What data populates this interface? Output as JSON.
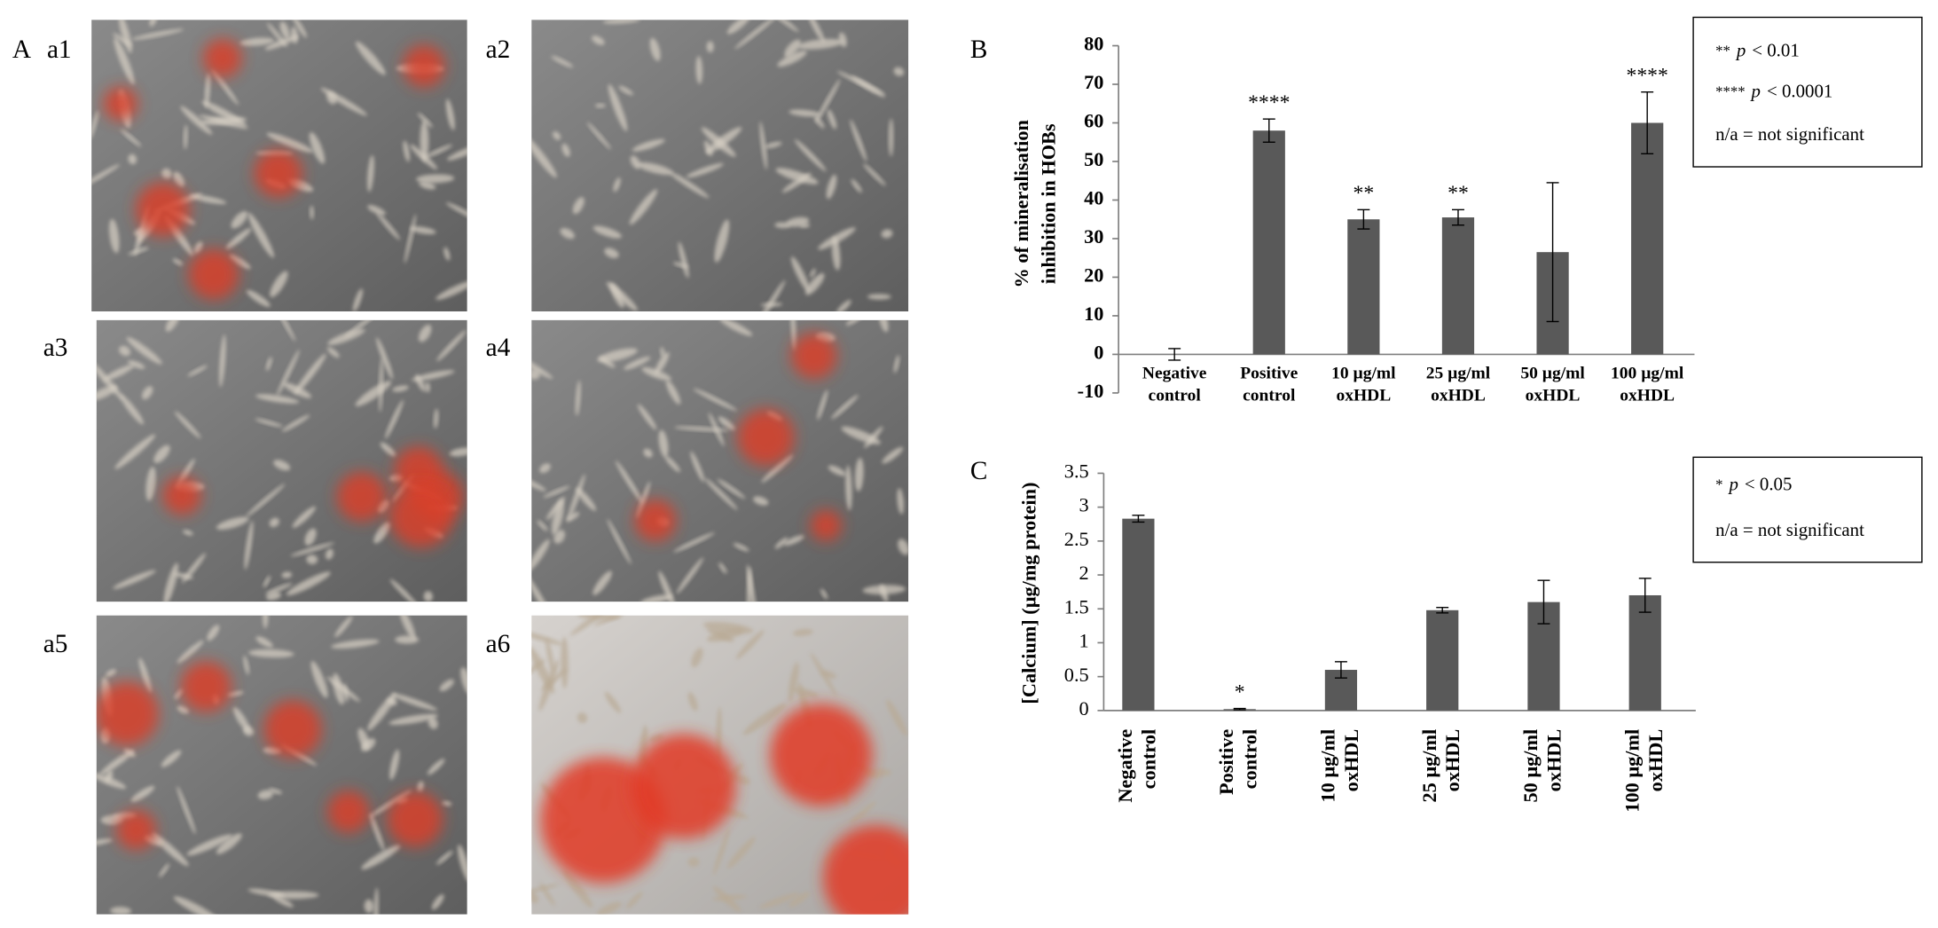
{
  "panels": {
    "main_label": "A",
    "images": [
      "a1",
      "a2",
      "a3",
      "a4",
      "a5",
      "a6"
    ]
  },
  "chart_data": [
    {
      "type": "bar",
      "panel_label": "B",
      "y_label": [
        "% of mineralisation",
        "inhibition in HOBs"
      ],
      "categories": [
        [
          "Negative",
          "control"
        ],
        [
          "Positive",
          "control"
        ],
        [
          "10 µg/ml",
          "oxHDL"
        ],
        [
          "25 µg/ml",
          "oxHDL"
        ],
        [
          "50 µg/ml",
          "oxHDL"
        ],
        [
          "100 µg/ml",
          "oxHDL"
        ]
      ],
      "values": [
        0,
        58,
        35,
        35.5,
        26.5,
        60
      ],
      "errors": [
        1.5,
        3,
        2.5,
        2,
        18,
        8
      ],
      "annotations": [
        null,
        "****",
        "**",
        "**",
        null,
        "****"
      ],
      "color": "#595959",
      "ylim": [
        -10,
        80
      ],
      "yticks": [
        -10,
        0,
        10,
        20,
        30,
        40,
        50,
        60,
        70,
        80
      ],
      "label_rotation": 0,
      "notes": [
        [
          "**",
          "p",
          "< 0.01"
        ],
        [
          "****",
          "p",
          "< 0.0001"
        ],
        [
          "n/a = not significant"
        ]
      ]
    },
    {
      "type": "bar",
      "panel_label": "C",
      "y_label": [
        "[Calcium] (µg/mg protein)"
      ],
      "categories": [
        [
          "Negative",
          "control"
        ],
        [
          "Positive",
          "control"
        ],
        [
          "10 µg/ml",
          "oxHDL"
        ],
        [
          "25 µg/ml",
          "oxHDL"
        ],
        [
          "50 µg/ml",
          "oxHDL"
        ],
        [
          "100 µg/ml",
          "oxHDL"
        ]
      ],
      "values": [
        2.83,
        0.02,
        0.6,
        1.48,
        1.6,
        1.7
      ],
      "errors": [
        0.05,
        0.01,
        0.12,
        0.04,
        0.32,
        0.25
      ],
      "annotations": [
        null,
        "*",
        null,
        null,
        null,
        null
      ],
      "color": "#595959",
      "ylim": [
        0,
        3.5
      ],
      "yticks": [
        0,
        0.5,
        1,
        1.5,
        2,
        2.5,
        3,
        3.5
      ],
      "label_rotation": -90,
      "notes": [
        [
          "*",
          "p",
          "< 0.05"
        ],
        [
          "n/a = not significant"
        ]
      ]
    }
  ]
}
